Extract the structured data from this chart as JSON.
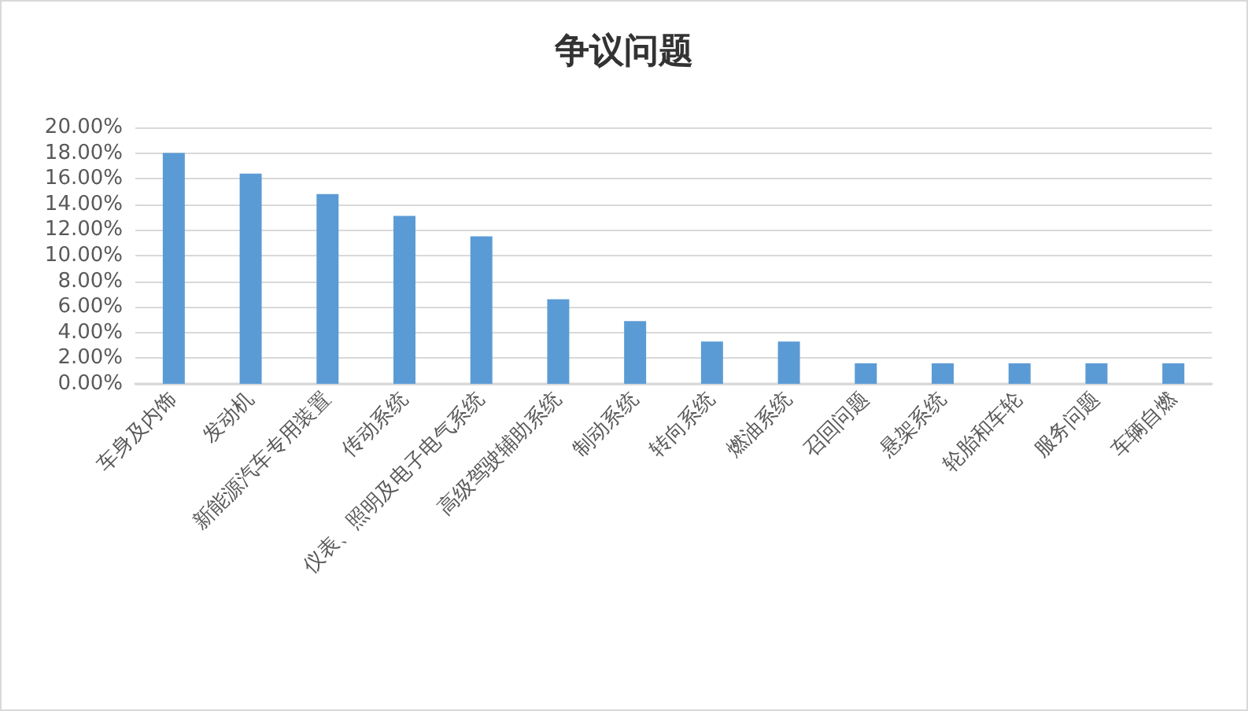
{
  "chart_data": {
    "type": "bar",
    "title": "争议问题",
    "categories": [
      "车身及内饰",
      "发动机",
      "新能源汽车专用装置",
      "传动系统",
      "仪表、照明及电子电气系统",
      "高级驾驶辅助系统",
      "制动系统",
      "转向系统",
      "燃油系统",
      "召回问题",
      "悬架系统",
      "轮胎和车轮",
      "服务问题",
      "车辆自燃"
    ],
    "values": [
      18.0,
      16.4,
      14.8,
      13.1,
      11.5,
      6.6,
      4.9,
      3.3,
      3.3,
      1.6,
      1.6,
      1.6,
      1.6,
      1.6
    ],
    "color": "#5b9bd5",
    "ylim": [
      0,
      20
    ],
    "yticks": [
      {
        "value": 0,
        "label": "0.00%"
      },
      {
        "value": 2,
        "label": "2.00%"
      },
      {
        "value": 4,
        "label": "4.00%"
      },
      {
        "value": 6,
        "label": "6.00%"
      },
      {
        "value": 8,
        "label": "8.00%"
      },
      {
        "value": 10,
        "label": "10.00%"
      },
      {
        "value": 12,
        "label": "12.00%"
      },
      {
        "value": 14,
        "label": "14.00%"
      },
      {
        "value": 16,
        "label": "16.00%"
      },
      {
        "value": 18,
        "label": "18.00%"
      },
      {
        "value": 20,
        "label": "20.00%"
      }
    ],
    "grid": "y"
  }
}
